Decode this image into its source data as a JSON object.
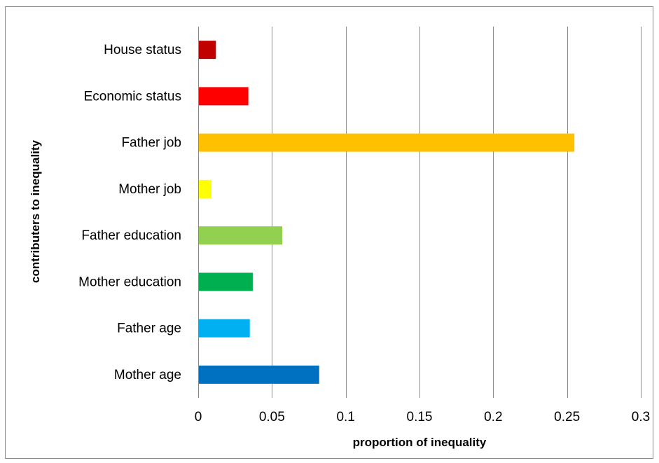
{
  "chart_data": {
    "type": "bar",
    "orientation": "horizontal",
    "title": "",
    "xlabel": "proportion of inequality",
    "ylabel": "contributers  to inequality",
    "categories": [
      "House status",
      "Economic status",
      "Father job",
      "Mother job",
      "Father education",
      "Mother education",
      "Father age",
      "Mother age"
    ],
    "values": [
      0.012,
      0.034,
      0.255,
      0.009,
      0.057,
      0.037,
      0.035,
      0.082
    ],
    "colors": [
      "#c00000",
      "#ff0000",
      "#ffc000",
      "#ffff00",
      "#92d050",
      "#00b050",
      "#00b0f0",
      "#0070c0"
    ],
    "xlim": [
      0,
      0.3
    ],
    "xticks": [
      0,
      0.05,
      0.1,
      0.15,
      0.2,
      0.25,
      0.3
    ],
    "xtick_labels": [
      "0",
      "0.05",
      "0.1",
      "0.15",
      "0.2",
      "0.25",
      "0.3"
    ],
    "grid": "vertical",
    "legend": "none"
  }
}
